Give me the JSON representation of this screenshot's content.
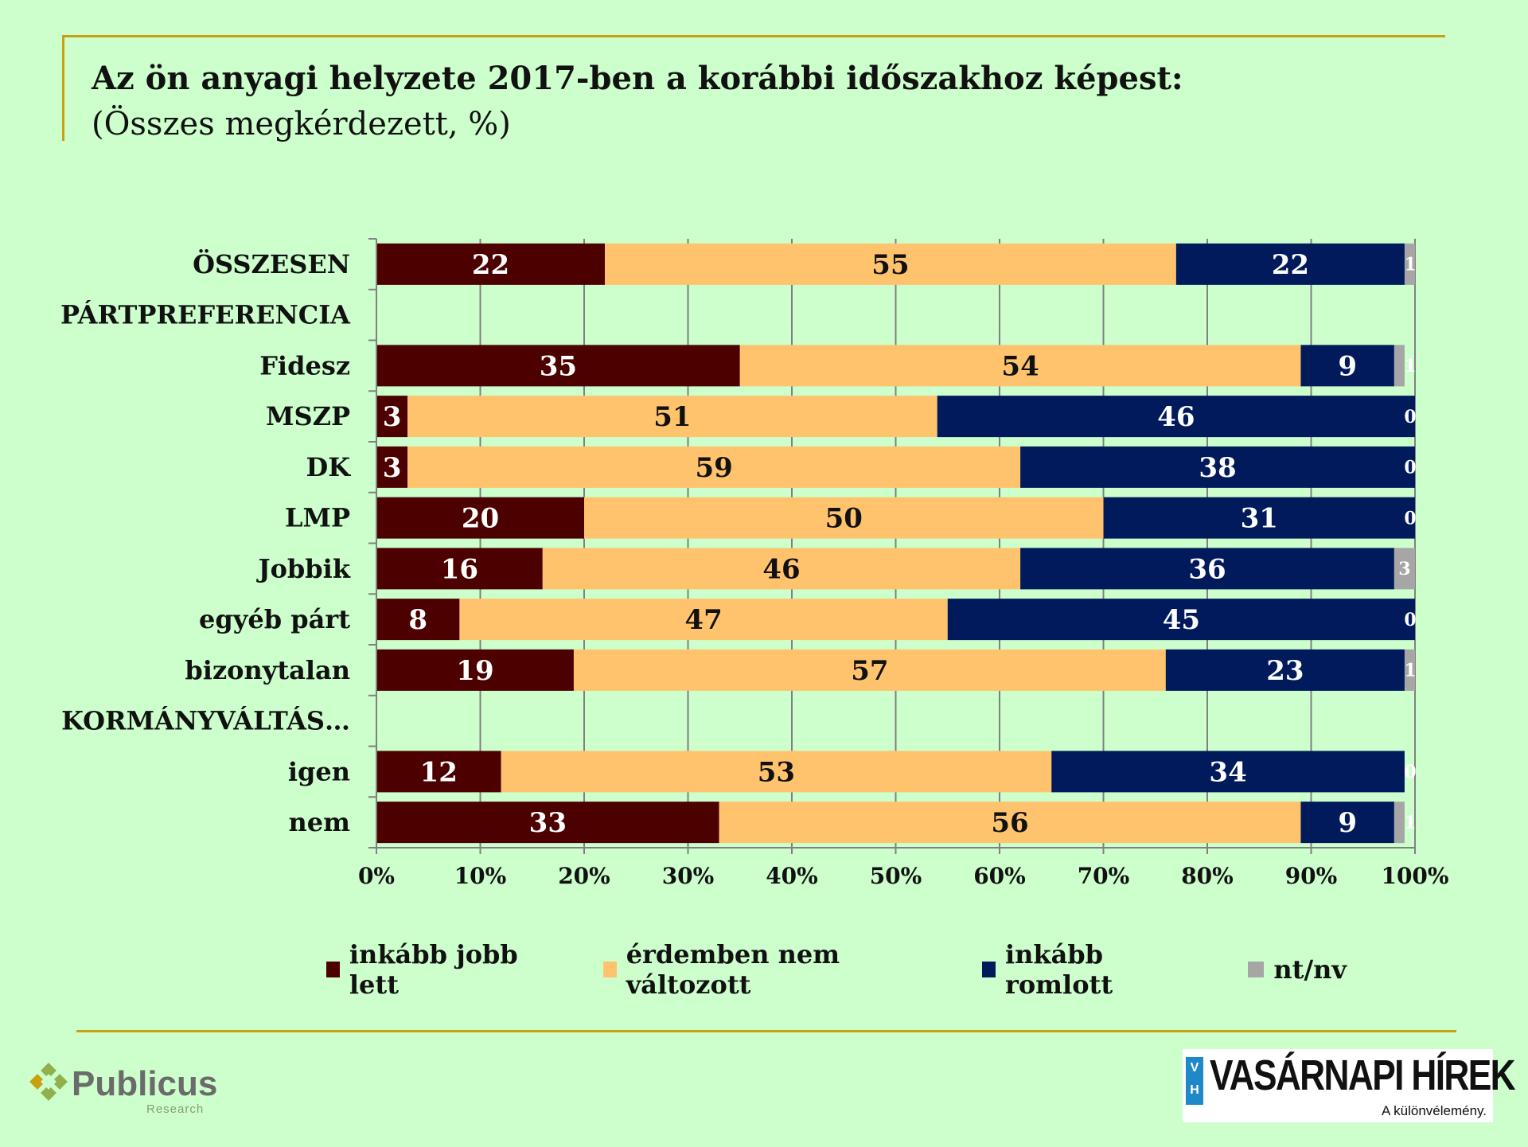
{
  "header": {
    "title": "Az ön anyagi helyzete 2017-ben a korábbi időszakhoz képest:",
    "subtitle": "(Összes megkérdezett, %)"
  },
  "chart_data": {
    "type": "bar",
    "orientation": "horizontal",
    "stacked": "100%",
    "categories": [
      "ÖSSZESEN",
      "PÁRTPREFERENCIA",
      "Fidesz",
      "MSZP",
      "DK",
      "LMP",
      "Jobbik",
      "egyéb párt",
      "bizonytalan",
      "KORMÁNYVÁLTÁS…",
      "igen",
      "nem"
    ],
    "series": [
      {
        "name": "inkább jobb lett",
        "color": "#4d0000",
        "values": [
          22,
          null,
          35,
          3,
          3,
          20,
          16,
          8,
          19,
          null,
          12,
          33
        ]
      },
      {
        "name": "érdemben nem változott",
        "color": "#ffc36e",
        "values": [
          55,
          null,
          54,
          51,
          59,
          50,
          46,
          47,
          57,
          null,
          53,
          56
        ]
      },
      {
        "name": "inkább romlott",
        "color": "#001a5c",
        "values": [
          22,
          null,
          9,
          46,
          38,
          31,
          36,
          45,
          23,
          null,
          34,
          9
        ]
      },
      {
        "name": "nt/nv",
        "color": "#a6a6a6",
        "values": [
          1,
          null,
          1,
          0,
          0,
          0,
          3,
          0,
          1,
          null,
          0,
          1
        ]
      }
    ],
    "xlim": [
      0,
      100
    ],
    "xticks": [
      "0%",
      "10%",
      "20%",
      "30%",
      "40%",
      "50%",
      "60%",
      "70%",
      "80%",
      "90%",
      "100%"
    ],
    "grid": true,
    "legend_position": "bottom"
  },
  "logos": {
    "left": "Publicus Research",
    "right_name": "VASÁRNAPI HÍREK",
    "right_badge": "VH",
    "right_tagline": "A különvélemény."
  }
}
